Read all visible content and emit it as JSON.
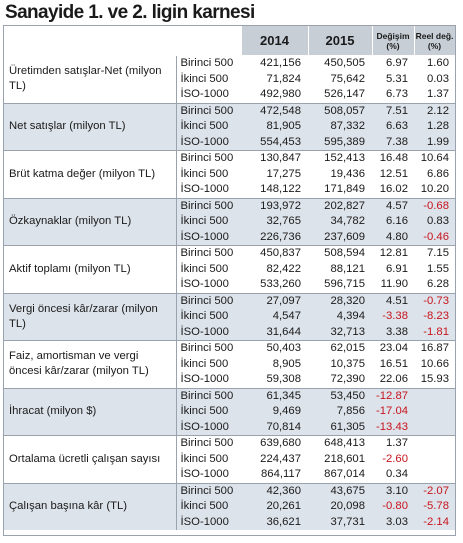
{
  "title": "Sanayide 1. ve 2. ligin karnesi",
  "headers": {
    "col_2014": "2014",
    "col_2015": "2015",
    "col_change_line1": "Değişim",
    "col_change_line2": "(%)",
    "col_real_line1": "Reel değ.",
    "col_real_line2": "(%)"
  },
  "sections": [
    {
      "label": "Üretimden satışlar-Net (milyon TL)",
      "rows": [
        {
          "group": "Birinci 500",
          "v2014": "421,156",
          "v2015": "450,505",
          "change": "6.97",
          "real": "1.60"
        },
        {
          "group": "İkinci 500",
          "v2014": "71,824",
          "v2015": "75,642",
          "change": "5.31",
          "real": "0.03"
        },
        {
          "group": "İSO-1000",
          "v2014": "492,980",
          "v2015": "526,147",
          "change": "6.73",
          "real": "1.37"
        }
      ]
    },
    {
      "label": "Net satışlar (milyon TL)",
      "rows": [
        {
          "group": "Birinci 500",
          "v2014": "472,548",
          "v2015": "508,057",
          "change": "7.51",
          "real": "2.12"
        },
        {
          "group": "İkinci 500",
          "v2014": "81,905",
          "v2015": "87,332",
          "change": "6.63",
          "real": "1.28"
        },
        {
          "group": "İSO-1000",
          "v2014": "554,453",
          "v2015": "595,389",
          "change": "7.38",
          "real": "1.99"
        }
      ]
    },
    {
      "label": "Brüt katma değer (milyon TL)",
      "rows": [
        {
          "group": "Birinci 500",
          "v2014": "130,847",
          "v2015": "152,413",
          "change": "16.48",
          "real": "10.64"
        },
        {
          "group": "İkinci 500",
          "v2014": "17,275",
          "v2015": "19,436",
          "change": "12.51",
          "real": "6.86"
        },
        {
          "group": "İSO-1000",
          "v2014": "148,122",
          "v2015": "171,849",
          "change": "16.02",
          "real": "10.20"
        }
      ]
    },
    {
      "label": "Özkaynaklar (milyon TL)",
      "rows": [
        {
          "group": "Birinci 500",
          "v2014": "193,972",
          "v2015": "202,827",
          "change": "4.57",
          "real": "-0.68"
        },
        {
          "group": "İkinci 500",
          "v2014": "32,765",
          "v2015": "34,782",
          "change": "6.16",
          "real": "0.83"
        },
        {
          "group": "İSO-1000",
          "v2014": "226,736",
          "v2015": "237,609",
          "change": "4.80",
          "real": "-0.46"
        }
      ]
    },
    {
      "label": "Aktif toplamı (milyon TL)",
      "rows": [
        {
          "group": "Birinci 500",
          "v2014": "450,837",
          "v2015": "508,594",
          "change": "12.81",
          "real": "7.15"
        },
        {
          "group": "İkinci 500",
          "v2014": "82,422",
          "v2015": "88,121",
          "change": "6.91",
          "real": "1.55"
        },
        {
          "group": "İSO-1000",
          "v2014": "533,260",
          "v2015": "596,715",
          "change": "11.90",
          "real": "6.28"
        }
      ]
    },
    {
      "label": "Vergi öncesi kâr/zarar (milyon TL)",
      "rows": [
        {
          "group": "Birinci 500",
          "v2014": "27,097",
          "v2015": "28,320",
          "change": "4.51",
          "real": "-0.73"
        },
        {
          "group": "İkinci 500",
          "v2014": "4,547",
          "v2015": "4,394",
          "change": "-3.38",
          "real": "-8.23"
        },
        {
          "group": "İSO-1000",
          "v2014": "31,644",
          "v2015": "32,713",
          "change": "3.38",
          "real": "-1.81"
        }
      ]
    },
    {
      "label": "Faiz, amortisman ve vergi öncesi kâr/zarar (milyon TL)",
      "rows": [
        {
          "group": "Birinci 500",
          "v2014": "50,403",
          "v2015": "62,015",
          "change": "23.04",
          "real": "16.87"
        },
        {
          "group": "İkinci 500",
          "v2014": "8,905",
          "v2015": "10,375",
          "change": "16.51",
          "real": "10.66"
        },
        {
          "group": "İSO-1000",
          "v2014": "59,308",
          "v2015": "72,390",
          "change": "22.06",
          "real": "15.93"
        }
      ]
    },
    {
      "label": "İhracat (milyon $)",
      "rows": [
        {
          "group": "Birinci 500",
          "v2014": "61,345",
          "v2015": "53,450",
          "change": "-12.87",
          "real": ""
        },
        {
          "group": "İkinci 500",
          "v2014": "9,469",
          "v2015": "7,856",
          "change": "-17.04",
          "real": ""
        },
        {
          "group": "İSO-1000",
          "v2014": "70,814",
          "v2015": "61,305",
          "change": "-13.43",
          "real": ""
        }
      ]
    },
    {
      "label": "Ortalama ücretli çalışan sayısı",
      "rows": [
        {
          "group": "Birinci 500",
          "v2014": "639,680",
          "v2015": "648,413",
          "change": "1.37",
          "real": ""
        },
        {
          "group": "İkinci 500",
          "v2014": "224,437",
          "v2015": "218,601",
          "change": "-2.60",
          "real": ""
        },
        {
          "group": "İSO-1000",
          "v2014": "864,117",
          "v2015": "867,014",
          "change": "0.34",
          "real": ""
        }
      ]
    },
    {
      "label": "Çalışan başına kâr (TL)",
      "rows": [
        {
          "group": "Birinci 500",
          "v2014": "42,360",
          "v2015": "43,675",
          "change": "3.10",
          "real": "-2.07"
        },
        {
          "group": "İkinci 500",
          "v2014": "20,261",
          "v2015": "20,098",
          "change": "-0.80",
          "real": "-5.78"
        },
        {
          "group": "İSO-1000",
          "v2014": "36,621",
          "v2015": "37,731",
          "change": "3.03",
          "real": "-2.14"
        }
      ]
    }
  ],
  "colors": {
    "header_bg": "#c7ced6",
    "shade_bg": "#dde3ea",
    "negative": "#c8141e",
    "border": "#9aa3ad"
  }
}
